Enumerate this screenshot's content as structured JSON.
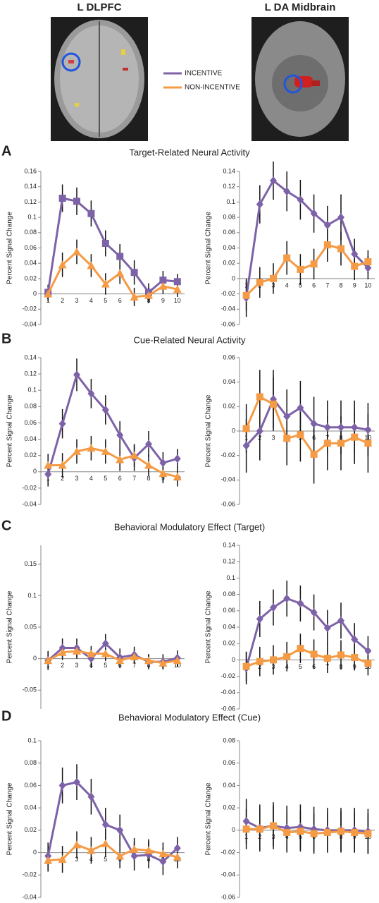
{
  "images": [
    "L DLPFC",
    "L DA Midbrain"
  ],
  "panels": [
    {
      "letter": "A",
      "title": "Target-Related Neural Activity"
    },
    {
      "letter": "B",
      "title": "Cue-Related Neural Activity"
    },
    {
      "letter": "C",
      "title": "Behavioral Modulatory Effect (Target)"
    },
    {
      "letter": "D",
      "title": "Behavioral Modulatory Effect (Cue)"
    }
  ],
  "chart_data": [
    {
      "type": "line",
      "y_label": "Percent Signal Change",
      "categories": [
        "1",
        "2",
        "3",
        "4",
        "5",
        "6",
        "7",
        "8",
        "9",
        "10"
      ],
      "ylim": [
        -0.04,
        0.16
      ],
      "yticks": [
        -0.04,
        -0.02,
        0,
        0.02,
        0.04,
        0.06,
        0.08,
        0.1,
        0.12,
        0.14,
        0.16
      ],
      "series": [
        {
          "name": "INCENTIVE",
          "color": "#7d62a8",
          "marker": "square",
          "values": [
            0.002,
            0.125,
            0.121,
            0.105,
            0.066,
            0.049,
            0.028,
            0.002,
            0.018,
            0.016
          ],
          "errors": [
            0.01,
            0.018,
            0.018,
            0.017,
            0.017,
            0.016,
            0.016,
            0.012,
            0.012,
            0.01
          ]
        },
        {
          "name": "NON-INCENTIVE",
          "color": "#f59a45",
          "marker": "triangle",
          "values": [
            0.0,
            0.038,
            0.055,
            0.037,
            0.013,
            0.027,
            -0.004,
            -0.002,
            0.01,
            0.006
          ],
          "errors": [
            0.01,
            0.016,
            0.016,
            0.015,
            0.014,
            0.014,
            0.012,
            0.01,
            0.01,
            0.01
          ]
        }
      ]
    },
    {
      "type": "line",
      "y_label": "Percent Signal Change",
      "categories": [
        "1",
        "2",
        "3",
        "4",
        "5",
        "6",
        "7",
        "8",
        "9",
        "10"
      ],
      "ylim": [
        -0.06,
        0.14
      ],
      "yticks": [
        -0.06,
        -0.04,
        -0.02,
        0,
        0.02,
        0.04,
        0.06,
        0.08,
        0.1,
        0.12,
        0.14
      ],
      "series": [
        {
          "name": "INCENTIVE",
          "color": "#7d62a8",
          "marker": "diamond",
          "values": [
            -0.025,
            0.097,
            0.128,
            0.114,
            0.103,
            0.085,
            0.07,
            0.08,
            0.032,
            0.014
          ],
          "errors": [
            0.025,
            0.025,
            0.025,
            0.026,
            0.026,
            0.025,
            0.025,
            0.03,
            0.02,
            0.015
          ]
        },
        {
          "name": "NON-INCENTIVE",
          "color": "#f59a45",
          "marker": "square",
          "values": [
            -0.022,
            -0.005,
            0.0,
            0.027,
            0.012,
            0.019,
            0.044,
            0.039,
            0.016,
            0.022
          ],
          "errors": [
            0.02,
            0.02,
            0.02,
            0.022,
            0.02,
            0.02,
            0.022,
            0.022,
            0.018,
            0.015
          ]
        }
      ]
    },
    {
      "type": "line",
      "y_label": "Percent Signal Change",
      "categories": [
        "1",
        "2",
        "3",
        "4",
        "5",
        "6",
        "7",
        "8",
        "9",
        "10"
      ],
      "ylim": [
        -0.04,
        0.14
      ],
      "yticks": [
        -0.04,
        -0.02,
        0,
        0.02,
        0.04,
        0.06,
        0.08,
        0.1,
        0.12,
        0.14
      ],
      "series": [
        {
          "name": "INCENTIVE",
          "color": "#7d62a8",
          "marker": "diamond",
          "values": [
            -0.003,
            0.059,
            0.119,
            0.096,
            0.076,
            0.045,
            0.017,
            0.034,
            0.011,
            0.016
          ],
          "errors": [
            0.015,
            0.018,
            0.02,
            0.018,
            0.018,
            0.017,
            0.016,
            0.016,
            0.013,
            0.012
          ]
        },
        {
          "name": "NON-INCENTIVE",
          "color": "#f59a45",
          "marker": "triangle",
          "values": [
            0.008,
            0.008,
            0.025,
            0.029,
            0.025,
            0.015,
            0.02,
            0.008,
            -0.002,
            -0.006
          ],
          "errors": [
            0.014,
            0.015,
            0.015,
            0.015,
            0.015,
            0.014,
            0.014,
            0.013,
            0.012,
            0.012
          ]
        }
      ]
    },
    {
      "type": "line",
      "y_label": "Percent Signal Change",
      "categories": [
        "1",
        "2",
        "3",
        "4",
        "5",
        "6",
        "7",
        "8",
        "9",
        "10"
      ],
      "ylim": [
        -0.06,
        0.06
      ],
      "yticks": [
        -0.06,
        -0.04,
        -0.02,
        0,
        0.02,
        0.04,
        0.06
      ],
      "series": [
        {
          "name": "INCENTIVE",
          "color": "#7d62a8",
          "marker": "diamond",
          "values": [
            -0.012,
            0.0,
            0.026,
            0.012,
            0.019,
            0.006,
            0.003,
            0.003,
            0.003,
            0.001
          ],
          "errors": [
            0.022,
            0.024,
            0.024,
            0.022,
            0.022,
            0.022,
            0.022,
            0.022,
            0.022,
            0.022
          ]
        },
        {
          "name": "NON-INCENTIVE",
          "color": "#f59a45",
          "marker": "square",
          "values": [
            0.002,
            0.028,
            0.022,
            -0.006,
            -0.003,
            -0.019,
            -0.01,
            -0.01,
            -0.005,
            -0.01
          ],
          "errors": [
            0.02,
            0.022,
            0.022,
            0.022,
            0.022,
            0.024,
            0.022,
            0.022,
            0.022,
            0.024
          ]
        }
      ]
    },
    {
      "type": "line",
      "y_label": "Percent Signal Change",
      "categories": [
        "1",
        "2",
        "3",
        "4",
        "5",
        "6",
        "7",
        "8",
        "9",
        "10"
      ],
      "ylim": [
        -0.08,
        0.18
      ],
      "yticks": [
        -0.05,
        0,
        0.05,
        0.1,
        0.15
      ],
      "series": [
        {
          "name": "INCENTIVE",
          "color": "#7d62a8",
          "marker": "diamond",
          "values": [
            -0.003,
            0.017,
            0.017,
            0.0,
            0.024,
            0.002,
            0.006,
            -0.005,
            -0.005,
            0.001
          ],
          "errors": [
            0.015,
            0.015,
            0.015,
            0.015,
            0.015,
            0.014,
            0.013,
            0.012,
            0.012,
            0.012
          ]
        },
        {
          "name": "NON-INCENTIVE",
          "color": "#f59a45",
          "marker": "triangle",
          "values": [
            -0.003,
            0.01,
            0.012,
            0.008,
            0.008,
            -0.003,
            0.003,
            -0.003,
            -0.007,
            -0.003
          ],
          "errors": [
            0.012,
            0.012,
            0.012,
            0.012,
            0.012,
            0.012,
            0.011,
            0.01,
            0.01,
            0.01
          ]
        }
      ]
    },
    {
      "type": "line",
      "y_label": "Percent Signal Change",
      "categories": [
        "1",
        "2",
        "3",
        "4",
        "5",
        "6",
        "7",
        "8",
        "9",
        "10"
      ],
      "ylim": [
        -0.06,
        0.14
      ],
      "yticks": [
        -0.06,
        -0.04,
        -0.02,
        0,
        0.02,
        0.04,
        0.06,
        0.08,
        0.1,
        0.12,
        0.14
      ],
      "series": [
        {
          "name": "INCENTIVE",
          "color": "#7d62a8",
          "marker": "diamond",
          "values": [
            -0.01,
            0.05,
            0.064,
            0.075,
            0.069,
            0.058,
            0.039,
            0.048,
            0.025,
            0.011
          ],
          "errors": [
            0.02,
            0.022,
            0.022,
            0.022,
            0.022,
            0.022,
            0.022,
            0.022,
            0.02,
            0.018
          ]
        },
        {
          "name": "NON-INCENTIVE",
          "color": "#f59a45",
          "marker": "square",
          "values": [
            -0.008,
            -0.002,
            0.0,
            0.004,
            0.014,
            0.007,
            0.002,
            0.006,
            0.003,
            -0.004
          ],
          "errors": [
            0.018,
            0.018,
            0.018,
            0.018,
            0.018,
            0.018,
            0.018,
            0.018,
            0.016,
            0.015
          ]
        }
      ]
    },
    {
      "type": "line",
      "y_label": "Percent Signal Change",
      "categories": [
        "1",
        "2",
        "3",
        "4",
        "5",
        "6",
        "7",
        "8",
        "9",
        "10"
      ],
      "ylim": [
        -0.04,
        0.1
      ],
      "yticks": [
        -0.04,
        -0.02,
        0,
        0.02,
        0.04,
        0.06,
        0.08,
        0.1
      ],
      "series": [
        {
          "name": "INCENTIVE",
          "color": "#7d62a8",
          "marker": "diamond",
          "values": [
            -0.003,
            0.06,
            0.063,
            0.05,
            0.025,
            0.02,
            -0.003,
            -0.002,
            -0.008,
            0.004
          ],
          "errors": [
            0.012,
            0.016,
            0.016,
            0.016,
            0.015,
            0.014,
            0.013,
            0.012,
            0.012,
            0.01
          ]
        },
        {
          "name": "NON-INCENTIVE",
          "color": "#f59a45",
          "marker": "triangle",
          "values": [
            -0.007,
            -0.006,
            0.007,
            0.002,
            0.008,
            -0.003,
            0.003,
            0.002,
            -0.001,
            -0.004
          ],
          "errors": [
            0.01,
            0.012,
            0.012,
            0.012,
            0.012,
            0.011,
            0.01,
            0.01,
            0.01,
            0.01
          ]
        }
      ]
    },
    {
      "type": "line",
      "y_label": "Percent Signal Change",
      "categories": [
        "1",
        "2",
        "3",
        "4",
        "5",
        "6",
        "7",
        "8",
        "9",
        "10"
      ],
      "ylim": [
        -0.06,
        0.08
      ],
      "yticks": [
        -0.06,
        -0.04,
        -0.02,
        0,
        0.02,
        0.04,
        0.06,
        0.08
      ],
      "series": [
        {
          "name": "INCENTIVE",
          "color": "#7d62a8",
          "marker": "diamond",
          "values": [
            0.008,
            0.002,
            0.004,
            0.002,
            0.003,
            0.001,
            0.0,
            0.0,
            0.0,
            -0.001
          ],
          "errors": [
            0.02,
            0.021,
            0.021,
            0.02,
            0.02,
            0.02,
            0.02,
            0.02,
            0.02,
            0.02
          ]
        },
        {
          "name": "NON-INCENTIVE",
          "color": "#f59a45",
          "marker": "square",
          "values": [
            0.001,
            0.001,
            0.004,
            -0.002,
            -0.001,
            -0.003,
            -0.002,
            -0.001,
            -0.002,
            -0.003
          ],
          "errors": [
            0.018,
            0.018,
            0.018,
            0.018,
            0.018,
            0.018,
            0.018,
            0.018,
            0.018,
            0.018
          ]
        }
      ]
    }
  ]
}
